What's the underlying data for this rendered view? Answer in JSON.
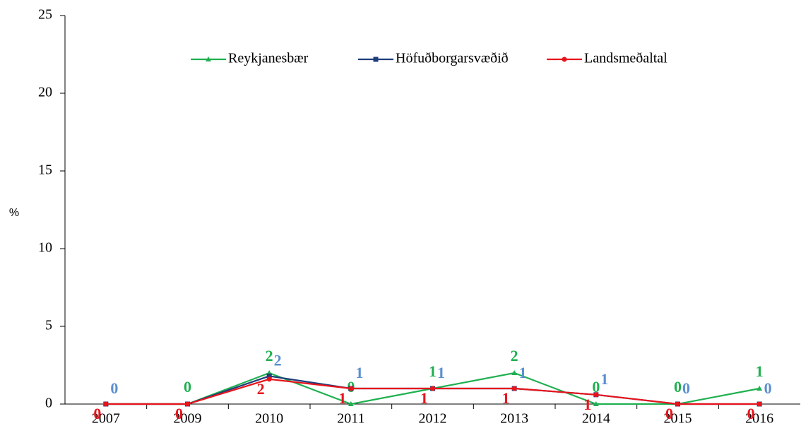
{
  "chart_data": {
    "type": "line",
    "categories": [
      "2007",
      "2009",
      "2010",
      "2011",
      "2012",
      "2013",
      "2014",
      "2015",
      "2016"
    ],
    "ylabel": "%",
    "ylim": [
      0,
      25
    ],
    "yticks": [
      0,
      5,
      10,
      15,
      20,
      25
    ],
    "grid": false,
    "legend": "top",
    "series": [
      {
        "name": "Reykjanesbær",
        "color": "#1fb050",
        "label_color": "#1fb050",
        "marker": "triangle",
        "values": [
          0,
          0,
          2,
          0,
          1,
          2,
          0,
          0,
          1
        ],
        "value_labels": [
          null,
          "0",
          "2",
          "0",
          "1",
          "2",
          "0",
          "0",
          "1"
        ]
      },
      {
        "name": "Höfuðborgarsvæðið",
        "color": "#1f3d7a",
        "label_color": "#5b8fd0",
        "marker": "square",
        "values": [
          0,
          0,
          1.8,
          1,
          1,
          1,
          0.6,
          0,
          0
        ],
        "value_labels": [
          "0",
          null,
          "2",
          "1",
          "1",
          "1",
          "1",
          "0",
          "0"
        ]
      },
      {
        "name": "Landsmeðaltal",
        "color": "#e8141c",
        "label_color": "#e8141c",
        "marker": "circle",
        "values": [
          0,
          0,
          1.6,
          1,
          1,
          1,
          0.6,
          0,
          0
        ],
        "value_labels": [
          "0",
          "0",
          "2",
          "1",
          "1",
          "1",
          "1",
          "0",
          "0"
        ]
      }
    ]
  }
}
